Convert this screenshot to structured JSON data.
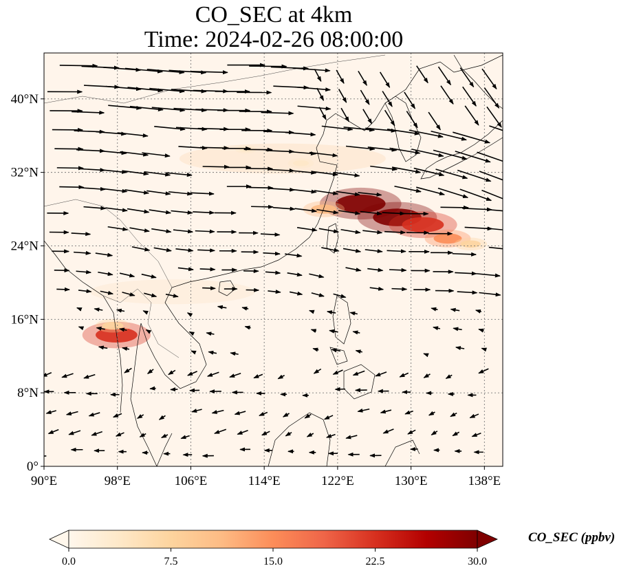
{
  "title": {
    "line1": "CO_SEC at 4km",
    "line2": "Time: 2024-02-26 08:00:00"
  },
  "map": {
    "type": "map",
    "extent": {
      "lon": [
        90,
        140
      ],
      "lat": [
        0,
        45
      ]
    },
    "grid": true,
    "xticks": [
      {
        "lon": 90,
        "label": "90°E"
      },
      {
        "lon": 98,
        "label": "98°E"
      },
      {
        "lon": 106,
        "label": "106°E"
      },
      {
        "lon": 114,
        "label": "114°E"
      },
      {
        "lon": 122,
        "label": "122°E"
      },
      {
        "lon": 130,
        "label": "130°E"
      },
      {
        "lon": 138,
        "label": "138°E"
      }
    ],
    "yticks": [
      {
        "lat": 0,
        "label": "0°"
      },
      {
        "lat": 8,
        "label": "8°N"
      },
      {
        "lat": 16,
        "label": "16°N"
      },
      {
        "lat": 24,
        "label": "24°N"
      },
      {
        "lat": 32,
        "label": "32°N"
      },
      {
        "lat": 40,
        "label": "40°N"
      }
    ],
    "background_color": "#fff5eb",
    "plumes": [
      {
        "lon": 124.5,
        "lat": 28.6,
        "value": 30
      },
      {
        "lon": 128.5,
        "lat": 27.1,
        "value": 29
      },
      {
        "lon": 131.3,
        "lat": 26.3,
        "value": 24
      },
      {
        "lon": 134.0,
        "lat": 24.8,
        "value": 14
      },
      {
        "lon": 136.5,
        "lat": 24.2,
        "value": 8
      },
      {
        "lon": 120.5,
        "lat": 28.0,
        "value": 12
      },
      {
        "lon": 97.9,
        "lat": 14.3,
        "value": 24
      },
      {
        "lon": 97.5,
        "lat": 15.3,
        "value": 9
      },
      {
        "lon": 118.0,
        "lat": 33.0,
        "value": 5
      },
      {
        "lon": 112.0,
        "lat": 34.5,
        "value": 3
      }
    ],
    "wind_vectors": "westerly flow north of ~18°N strengthening over the East China Sea and Japan; weak easterly/northeasterly flow over the South China Sea and Indochina"
  },
  "colorbar": {
    "min": 0,
    "max": 30,
    "ticks": [
      "0.0",
      "7.5",
      "15.0",
      "22.5",
      "30.0"
    ],
    "tick_values": [
      0,
      7.5,
      15,
      22.5,
      30
    ],
    "label": "CO_SEC (ppbv)",
    "colormap": "OrRd",
    "colors": [
      "#fff7ec",
      "#fee8c8",
      "#fdd49e",
      "#fdbb84",
      "#fc8d59",
      "#ef6548",
      "#d7301f",
      "#b30000",
      "#7f0000"
    ],
    "extend": "both"
  }
}
